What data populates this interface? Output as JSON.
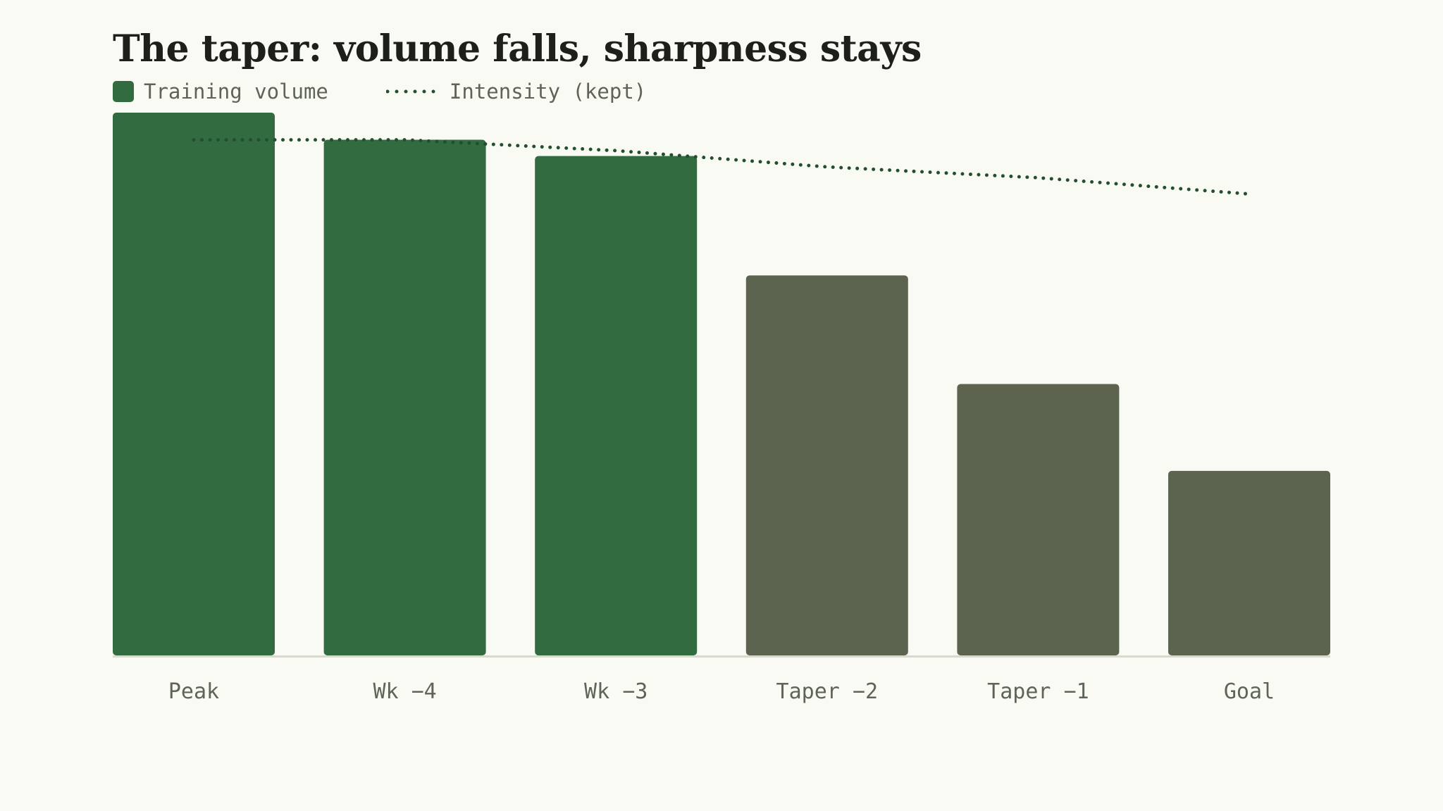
{
  "chart_data": {
    "type": "bar",
    "title": "The taper: volume falls, sharpness stays",
    "categories": [
      "Peak",
      "Wk −4",
      "Wk −3",
      "Taper −2",
      "Taper −1",
      "Goal"
    ],
    "series": [
      {
        "name": "Training volume",
        "type": "bar",
        "values": [
          100,
          95,
          92,
          70,
          50,
          34
        ],
        "colors": [
          "#316B3F",
          "#316B3F",
          "#316B3F",
          "#5C644F",
          "#5C644F",
          "#5C644F"
        ]
      },
      {
        "name": "Intensity (kept)",
        "type": "line",
        "style": "dotted",
        "color": "#244F2F",
        "values": [
          95,
          95,
          93,
          90,
          88,
          85
        ]
      }
    ],
    "ylim": [
      0,
      100
    ],
    "xlabel": "",
    "ylabel": "",
    "grid": false,
    "legend": "top-left"
  },
  "legend": {
    "volume_label": "Training volume",
    "intensity_label": "Intensity (kept)"
  },
  "colors": {
    "background": "#FAFAF5",
    "build_bar": "#316B3F",
    "taper_bar": "#5C644F",
    "intensity_line": "#244F2F",
    "baseline": "#D8DACB",
    "title": "#1C1F1A",
    "label": "#5E6458"
  }
}
